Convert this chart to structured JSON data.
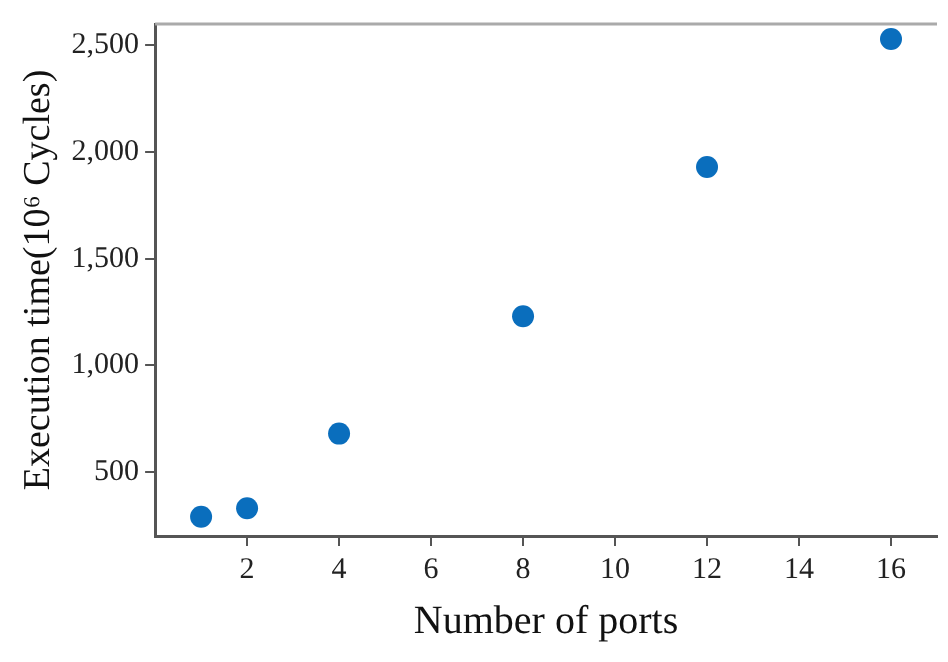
{
  "chart_data": {
    "type": "scatter",
    "xlabel": "Number of ports",
    "ylabel": "Execution time(10⁶ Cycles)",
    "x": [
      1,
      2,
      4,
      8,
      12,
      16
    ],
    "series": [
      {
        "color": "#0a6ebd",
        "values": [
          290,
          330,
          680,
          1230,
          1930,
          2530
        ]
      }
    ],
    "xlim": [
      0,
      17
    ],
    "xticks": [
      2,
      4,
      6,
      8,
      10,
      12,
      14,
      16
    ],
    "ylim": [
      200,
      2600
    ],
    "yticks": [
      {
        "value": 500,
        "label": "500"
      },
      {
        "value": 1000,
        "label": "1,000"
      },
      {
        "value": 1500,
        "label": "1,500"
      },
      {
        "value": 2000,
        "label": "2,000"
      },
      {
        "value": 2500,
        "label": "2,500"
      }
    ],
    "grid": false,
    "legend": false,
    "marker": "circle"
  }
}
